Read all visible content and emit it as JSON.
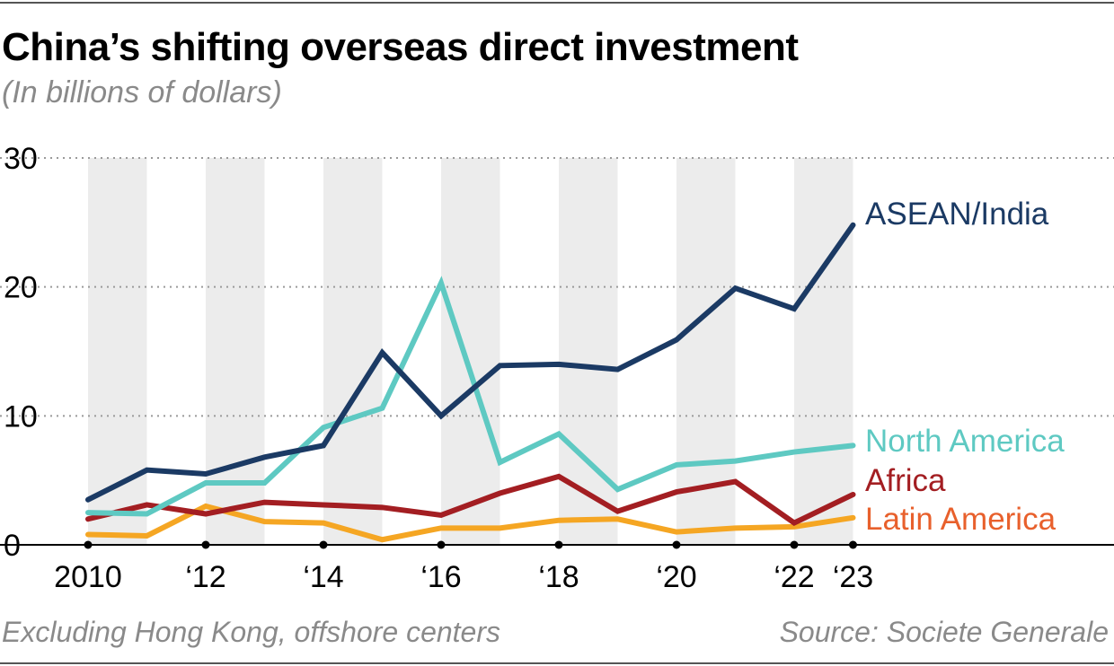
{
  "title": "China’s shifting overseas direct investment",
  "subtitle": "(In billions of dollars)",
  "footer": {
    "note": "Excluding Hong Kong, offshore centers",
    "source": "Source: Societe Generale"
  },
  "chart_data": {
    "type": "line",
    "x": [
      2010,
      2011,
      2012,
      2013,
      2014,
      2015,
      2016,
      2017,
      2018,
      2019,
      2020,
      2021,
      2022,
      2023
    ],
    "x_tick_values": [
      2010,
      2012,
      2014,
      2016,
      2018,
      2020,
      2022,
      2023
    ],
    "x_tick_labels": [
      "2010",
      "‘12",
      "‘14",
      "‘16",
      "‘18",
      "‘20",
      "‘22",
      "‘23"
    ],
    "y_ticks": [
      0,
      10,
      20,
      30
    ],
    "y_tick_labels": [
      "0",
      "10",
      "20",
      "30"
    ],
    "ylim": [
      0,
      30
    ],
    "grid": true,
    "alternating_year_bands": true,
    "series": [
      {
        "name": "ASEAN/India",
        "color": "#1b3a64",
        "values": [
          3.5,
          5.8,
          5.5,
          6.8,
          7.7,
          14.9,
          10.0,
          13.9,
          14.0,
          13.6,
          15.9,
          19.9,
          18.3,
          24.8
        ]
      },
      {
        "name": "North America",
        "color": "#5ec9c2",
        "values": [
          2.5,
          2.4,
          4.8,
          4.8,
          9.1,
          10.6,
          20.3,
          6.4,
          8.6,
          4.3,
          6.2,
          6.5,
          7.2,
          7.7
        ]
      },
      {
        "name": "Africa",
        "color": "#a31e22",
        "values": [
          2.0,
          3.1,
          2.4,
          3.3,
          3.1,
          2.9,
          2.3,
          4.0,
          5.3,
          2.6,
          4.1,
          4.9,
          1.7,
          3.9
        ]
      },
      {
        "name": "Latin America",
        "color": "#f5a623",
        "label_color": "#e8602c",
        "values": [
          0.8,
          0.7,
          3.0,
          1.8,
          1.7,
          0.4,
          1.3,
          1.3,
          1.9,
          2.0,
          1.0,
          1.3,
          1.4,
          2.1
        ]
      }
    ]
  }
}
